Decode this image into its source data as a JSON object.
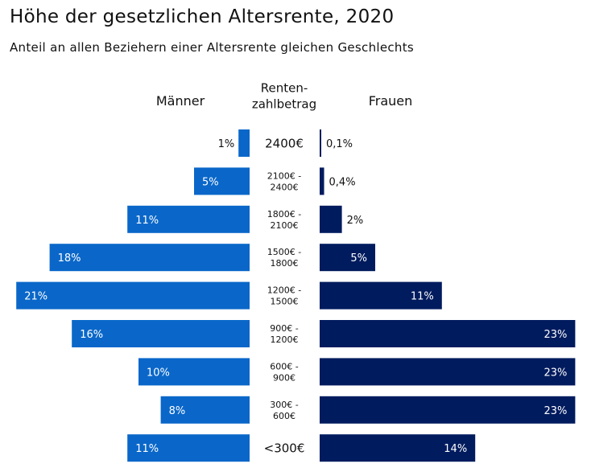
{
  "chart_data": {
    "type": "bar",
    "orientation": "horizontal-butterfly",
    "title": "Höhe der gesetzlichen Altersrente, 2020",
    "subtitle": "Anteil an allen Beziehern einer Altersrente gleichen Geschlechts",
    "category_header": "Renten-\nzahlbetrag",
    "categories": [
      "2400€",
      "2100€ -\n2400€",
      "1800€ -\n2100€",
      "1500€ -\n1800€",
      "1200€ -\n1500€",
      "900€ -\n1200€",
      "600€ -\n900€",
      "300€ -\n600€",
      "<300€"
    ],
    "series": [
      {
        "name": "Männer",
        "color": "#0a67c9",
        "values": [
          1,
          5,
          11,
          18,
          21,
          16,
          10,
          8,
          11
        ],
        "labels": [
          "1%",
          "5%",
          "11%",
          "18%",
          "21%",
          "16%",
          "10%",
          "8%",
          "11%"
        ]
      },
      {
        "name": "Frauen",
        "color": "#001b5e",
        "values": [
          0.1,
          0.4,
          2,
          5,
          11,
          23,
          23,
          23,
          14
        ],
        "labels": [
          "0,1%",
          "0,4%",
          "2%",
          "5%",
          "11%",
          "23%",
          "23%",
          "23%",
          "14%"
        ]
      }
    ],
    "unit": "%",
    "grid": false
  }
}
